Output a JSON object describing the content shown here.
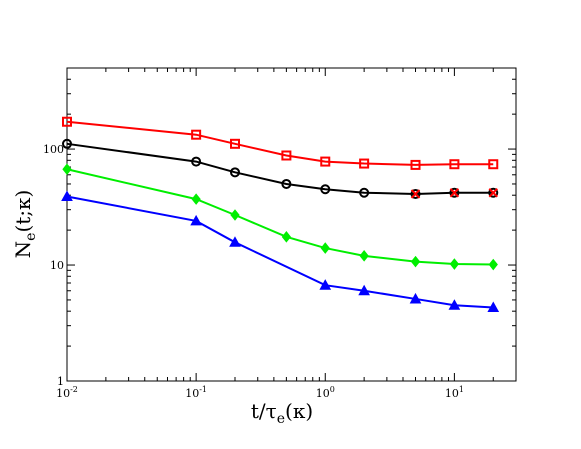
{
  "chart_data": {
    "type": "line",
    "x_scale": "log",
    "y_scale": "log",
    "xlim": [
      0.01,
      30
    ],
    "ylim": [
      1,
      500
    ],
    "grid": false,
    "xlabel": {
      "main": "t/τ",
      "sub": "e",
      "tail": "(κ)"
    },
    "ylabel": {
      "main": "N",
      "sub": "e",
      "tail": "(t;κ)"
    },
    "x_ticks": [
      {
        "value": 0.01,
        "base": "10",
        "exp": "-2"
      },
      {
        "value": 0.1,
        "base": "10",
        "exp": "-1"
      },
      {
        "value": 1,
        "base": "10",
        "exp": "0"
      },
      {
        "value": 10,
        "base": "10",
        "exp": "1"
      }
    ],
    "y_ticks": [
      {
        "value": 1,
        "label": "1"
      },
      {
        "value": 10,
        "label": "10"
      },
      {
        "value": 100,
        "label": "100"
      }
    ],
    "series": [
      {
        "color": "#ff0000",
        "marker": "square",
        "x": [
          0.01,
          0.1,
          0.2,
          0.5,
          1,
          2,
          5,
          10,
          20
        ],
        "y": [
          172,
          133,
          111,
          88,
          78,
          75,
          73,
          74,
          74
        ]
      },
      {
        "color": "#000000",
        "marker": "circle",
        "x": [
          0.01,
          0.1,
          0.2,
          0.5,
          1,
          2,
          5,
          10,
          20
        ],
        "y": [
          111,
          78,
          63,
          50,
          45,
          42,
          41,
          42,
          42
        ]
      },
      {
        "color": "#00ee00",
        "marker": "diamond",
        "x": [
          0.01,
          0.1,
          0.2,
          0.5,
          1,
          2,
          5,
          10,
          20
        ],
        "y": [
          67,
          37,
          27,
          17.5,
          14,
          12,
          10.7,
          10.2,
          10.1
        ]
      },
      {
        "color": "#0000ff",
        "marker": "triangle",
        "x": [
          0.01,
          0.1,
          0.2,
          0.5,
          1,
          2,
          5,
          10,
          20
        ],
        "y": [
          39,
          24,
          15.7,
          null,
          6.7,
          6.0,
          5.1,
          4.5,
          4.3
        ]
      },
      {
        "color": "#ff0000",
        "marker": "cross",
        "line": false,
        "x": [
          5,
          10,
          20
        ],
        "y": [
          41,
          42,
          42
        ]
      }
    ]
  }
}
